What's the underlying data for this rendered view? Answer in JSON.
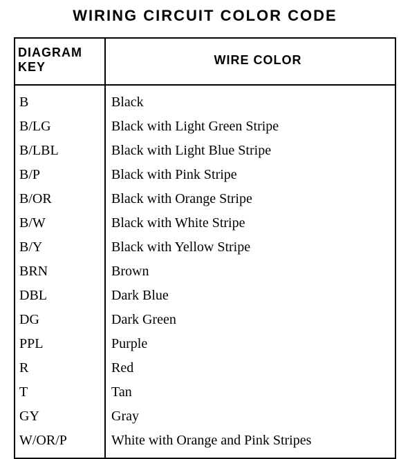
{
  "title": "WIRING CIRCUIT COLOR CODE",
  "table": {
    "columns": [
      "DIAGRAM KEY",
      "WIRE COLOR"
    ],
    "rows": [
      {
        "key": "B",
        "color": "Black"
      },
      {
        "key": "B/LG",
        "color": "Black with Light Green Stripe"
      },
      {
        "key": "B/LBL",
        "color": "Black with Light Blue Stripe"
      },
      {
        "key": "B/P",
        "color": "Black with Pink Stripe"
      },
      {
        "key": "B/OR",
        "color": "Black with Orange Stripe"
      },
      {
        "key": "B/W",
        "color": "Black with White Stripe"
      },
      {
        "key": "B/Y",
        "color": "Black with Yellow Stripe"
      },
      {
        "key": "BRN",
        "color": "Brown"
      },
      {
        "key": "DBL",
        "color": "Dark Blue"
      },
      {
        "key": "DG",
        "color": "Dark Green"
      },
      {
        "key": "PPL",
        "color": "Purple"
      },
      {
        "key": "R",
        "color": "Red"
      },
      {
        "key": "T",
        "color": "Tan"
      },
      {
        "key": "GY",
        "color": "Gray"
      },
      {
        "key": "W/OR/P",
        "color": "White with Orange and Pink Stripes"
      }
    ],
    "border_color": "#000000",
    "background_color": "#ffffff",
    "title_fontsize": 22,
    "header_fontsize": 18,
    "cell_fontsize": 20,
    "col_key_width": 130
  }
}
